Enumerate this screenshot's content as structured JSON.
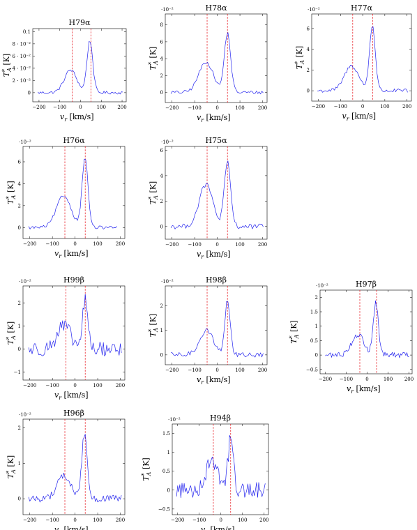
{
  "chart_data": [
    {
      "type": "line",
      "title": "H79α",
      "xlabel": "v_r [km/s]",
      "ylabel": "T*_A [K]",
      "multiplier": "",
      "xlim": [
        -230,
        220
      ],
      "ylim": [
        -0.015,
        0.105
      ],
      "x_ticks": [
        -200,
        -100,
        0,
        100,
        200
      ],
      "y_ticks": [
        0,
        0.02,
        0.04,
        0.06,
        0.08,
        0.1
      ],
      "y_tick_labels": [
        "0",
        "2 · 10⁻²",
        "4 · 10⁻²",
        "6 · 10⁻²",
        "8 · 10⁻²",
        "0.1"
      ],
      "vlines": [
        -40,
        50
      ],
      "peaks": [
        {
          "mu": -48,
          "sigma": 30,
          "amp": 0.037
        },
        {
          "mu": 45,
          "sigma": 14,
          "amp": 0.085
        }
      ],
      "baseline": 0.0,
      "noise": 0.0025,
      "x_range": [
        -205,
        205
      ],
      "step": 6
    },
    {
      "type": "line",
      "title": "H78α",
      "xlabel": "v_r [km/s]",
      "ylabel": "T*_A [K]",
      "multiplier": "·10⁻²",
      "xlim": [
        -230,
        220
      ],
      "ylim": [
        -1.2,
        9.3
      ],
      "x_ticks": [
        -200,
        -100,
        0,
        100,
        200
      ],
      "y_ticks": [
        0,
        2,
        4,
        6,
        8
      ],
      "y_tick_labels": [
        "0",
        "2",
        "4",
        "6",
        "8"
      ],
      "vlines": [
        -45,
        45
      ],
      "peaks": [
        {
          "mu": -50,
          "sigma": 32,
          "amp": 3.6
        },
        {
          "mu": 45,
          "sigma": 14,
          "amp": 7.0
        }
      ],
      "baseline": 0.0,
      "noise": 0.2,
      "x_range": [
        -205,
        205
      ],
      "step": 6
    },
    {
      "type": "line",
      "title": "H77α",
      "xlabel": "v_r [km/s]",
      "ylabel": "T*_A [K]",
      "multiplier": "·10⁻²",
      "xlim": [
        -230,
        220
      ],
      "ylim": [
        -1.0,
        7.4
      ],
      "x_ticks": [
        -200,
        -100,
        0,
        100,
        200
      ],
      "y_ticks": [
        0,
        2,
        4,
        6
      ],
      "y_tick_labels": [
        "0",
        "2",
        "4",
        "6"
      ],
      "vlines": [
        -45,
        45
      ],
      "peaks": [
        {
          "mu": -50,
          "sigma": 32,
          "amp": 2.4
        },
        {
          "mu": 44,
          "sigma": 13,
          "amp": 6.3
        }
      ],
      "baseline": 0.0,
      "noise": 0.18,
      "x_range": [
        -205,
        205
      ],
      "step": 6
    },
    {
      "type": "line",
      "title": "H76α",
      "xlabel": "v_r [km/s]",
      "ylabel": "T*_A [K]",
      "multiplier": "·10⁻²",
      "xlim": [
        -230,
        220
      ],
      "ylim": [
        -1.0,
        7.4
      ],
      "x_ticks": [
        -200,
        -100,
        0,
        100,
        200
      ],
      "y_ticks": [
        0,
        2,
        4,
        6
      ],
      "y_tick_labels": [
        "0",
        "2",
        "4",
        "6"
      ],
      "vlines": [
        -45,
        45
      ],
      "peaks": [
        {
          "mu": -50,
          "sigma": 32,
          "amp": 2.9
        },
        {
          "mu": 44,
          "sigma": 13,
          "amp": 6.4
        }
      ],
      "baseline": 0.0,
      "noise": 0.15,
      "x_range": [
        -205,
        190
      ],
      "step": 6
    },
    {
      "type": "line",
      "title": "H75α",
      "xlabel": "v_r [km/s]",
      "ylabel": "T*_A [K]",
      "multiplier": "·10⁻²",
      "xlim": [
        -230,
        220
      ],
      "ylim": [
        -1.0,
        6.3
      ],
      "x_ticks": [
        -200,
        -100,
        0,
        100,
        200
      ],
      "y_ticks": [
        0,
        2,
        4,
        6
      ],
      "y_tick_labels": [
        "0",
        "2",
        "4",
        "6"
      ],
      "vlines": [
        -45,
        45
      ],
      "peaks": [
        {
          "mu": -50,
          "sigma": 30,
          "amp": 3.3
        },
        {
          "mu": 45,
          "sigma": 14,
          "amp": 5.0
        }
      ],
      "baseline": 0.0,
      "noise": 0.2,
      "x_range": [
        -205,
        205
      ],
      "step": 6
    },
    {
      "type": "line",
      "title": "H99β",
      "xlabel": "v_r [km/s]",
      "ylabel": "T*_A [K]",
      "multiplier": "·10⁻²",
      "xlim": [
        -230,
        220
      ],
      "ylim": [
        -1.35,
        2.75
      ],
      "x_ticks": [
        -200,
        -100,
        0,
        100,
        200
      ],
      "y_ticks": [
        -1,
        0,
        1,
        2
      ],
      "y_tick_labels": [
        "−1",
        "0",
        "1",
        "2"
      ],
      "vlines": [
        -40,
        45
      ],
      "peaks": [
        {
          "mu": -50,
          "sigma": 30,
          "amp": 1.0
        },
        {
          "mu": 45,
          "sigma": 12,
          "amp": 2.1
        }
      ],
      "baseline": 0.0,
      "noise": 0.32,
      "x_range": [
        -205,
        205
      ],
      "step": 5
    },
    {
      "type": "line",
      "title": "H98β",
      "xlabel": "v_r [km/s]",
      "ylabel": "T*_A [K]",
      "multiplier": "·10⁻²",
      "xlim": [
        -230,
        220
      ],
      "ylim": [
        -0.4,
        2.8
      ],
      "x_ticks": [
        -200,
        -100,
        0,
        100,
        200
      ],
      "y_ticks": [
        0,
        1,
        2
      ],
      "y_tick_labels": [
        "0",
        "1",
        "2"
      ],
      "vlines": [
        -45,
        45
      ],
      "peaks": [
        {
          "mu": -48,
          "sigma": 30,
          "amp": 1.0
        },
        {
          "mu": 45,
          "sigma": 12,
          "amp": 2.2
        }
      ],
      "baseline": 0.0,
      "noise": 0.1,
      "x_range": [
        -205,
        205
      ],
      "step": 6
    },
    {
      "type": "line",
      "title": "H97β",
      "xlabel": "v_r [km/s]",
      "ylabel": "T*_A [K]",
      "multiplier": "·10⁻²",
      "xlim": [
        -225,
        215
      ],
      "ylim": [
        -0.65,
        2.25
      ],
      "x_ticks": [
        -200,
        -100,
        0,
        100,
        200
      ],
      "y_ticks": [
        -0.5,
        0,
        0.5,
        1,
        1.5,
        2
      ],
      "y_tick_labels": [
        "−0.5",
        "0",
        "0.5",
        "1",
        "1.5",
        "2"
      ],
      "vlines": [
        -35,
        45
      ],
      "peaks": [
        {
          "mu": -45,
          "sigma": 30,
          "amp": 0.7
        },
        {
          "mu": 42,
          "sigma": 12,
          "amp": 1.8
        }
      ],
      "baseline": 0.0,
      "noise": 0.1,
      "x_range": [
        -200,
        200
      ],
      "step": 5
    },
    {
      "type": "line",
      "title": "H96β",
      "xlabel": "v_r [km/s]",
      "ylabel": "T*_A [K]",
      "multiplier": "·10⁻²",
      "xlim": [
        -230,
        220
      ],
      "ylim": [
        -0.45,
        2.25
      ],
      "x_ticks": [
        -200,
        -100,
        0,
        100,
        200
      ],
      "y_ticks": [
        0,
        1,
        2
      ],
      "y_tick_labels": [
        "0",
        "1",
        "2"
      ],
      "vlines": [
        -45,
        45
      ],
      "peaks": [
        {
          "mu": -50,
          "sigma": 30,
          "amp": 0.65
        },
        {
          "mu": 42,
          "sigma": 12,
          "amp": 1.85
        }
      ],
      "baseline": 0.0,
      "noise": 0.1,
      "x_range": [
        -205,
        205
      ],
      "step": 5
    },
    {
      "type": "line",
      "title": "H94β",
      "xlabel": "v_r [km/s]",
      "ylabel": "T*_A [K]",
      "multiplier": "·10⁻²",
      "xlim": [
        -225,
        220
      ],
      "ylim": [
        -0.65,
        1.75
      ],
      "x_ticks": [
        -200,
        -100,
        0,
        100,
        200
      ],
      "y_ticks": [
        -0.5,
        0,
        0.5,
        1,
        1.5
      ],
      "y_tick_labels": [
        "−0.5",
        "0",
        "0.5",
        "1",
        "1.5"
      ],
      "vlines": [
        -35,
        45
      ],
      "peaks": [
        {
          "mu": -40,
          "sigma": 28,
          "amp": 0.8
        },
        {
          "mu": 45,
          "sigma": 12,
          "amp": 1.35
        }
      ],
      "baseline": 0.0,
      "noise": 0.22,
      "x_range": [
        -205,
        205
      ],
      "step": 5
    }
  ]
}
